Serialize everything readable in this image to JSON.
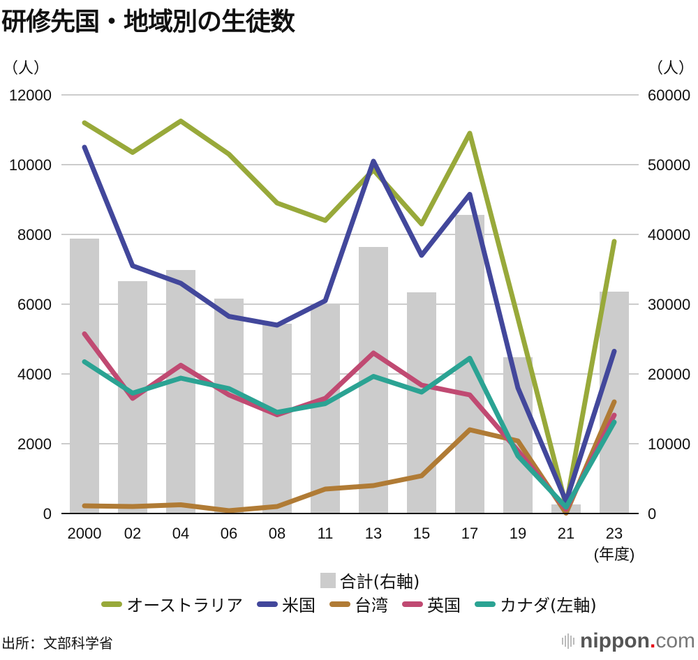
{
  "header": {
    "title": "研修先国・地域別の生徒数",
    "left_unit": "（人）",
    "right_unit": "（人）"
  },
  "chart_data": {
    "type": "bar+line",
    "title": "研修先国・地域別の生徒数",
    "xlabel": "(年度)",
    "ylabel_left": "（人）",
    "ylabel_right": "（人）",
    "categories": [
      "2000",
      "02",
      "04",
      "06",
      "08",
      "11",
      "13",
      "15",
      "17",
      "19",
      "21",
      "23"
    ],
    "y_left": {
      "min": 0,
      "max": 12000,
      "ticks": [
        "0",
        "2000",
        "4000",
        "6000",
        "8000",
        "10000",
        "12000"
      ]
    },
    "y_right": {
      "min": 0,
      "max": 60000,
      "ticks": [
        "0",
        "10000",
        "20000",
        "30000",
        "40000",
        "50000",
        "60000"
      ]
    },
    "grid": true,
    "bars": {
      "name": "合計(右軸)",
      "axis": "right",
      "color": "#cccccc",
      "values": [
        39400,
        33300,
        34900,
        30800,
        27200,
        30000,
        38200,
        31700,
        42800,
        22400,
        1300,
        31800
      ]
    },
    "series": [
      {
        "name": "オーストラリア",
        "axis": "left",
        "color": "#98a93a",
        "values": [
          11200,
          10350,
          11250,
          10300,
          8900,
          8400,
          9850,
          8300,
          10900,
          5600,
          220,
          7800
        ]
      },
      {
        "name": "米国",
        "axis": "left",
        "color": "#42479b",
        "values": [
          10500,
          7100,
          6600,
          5650,
          5400,
          6100,
          10100,
          7400,
          9150,
          3600,
          350,
          4650
        ]
      },
      {
        "name": "台湾",
        "axis": "left",
        "color": "#b07b35",
        "values": [
          220,
          200,
          250,
          80,
          200,
          700,
          800,
          1080,
          2400,
          2080,
          10,
          3200
        ]
      },
      {
        "name": "英国",
        "axis": "left",
        "color": "#c04a72",
        "values": [
          5150,
          3300,
          4250,
          3400,
          2830,
          3300,
          4600,
          3680,
          3400,
          1800,
          120,
          2820
        ]
      },
      {
        "name": "カナダ",
        "axis": "left",
        "color": "#2ba393",
        "values": [
          4350,
          3450,
          3880,
          3580,
          2900,
          3150,
          3930,
          3480,
          4450,
          1650,
          180,
          2620
        ]
      }
    ],
    "legend": {
      "placement": "bottom",
      "bar_label": "合計(右軸)",
      "line_labels": [
        "オーストラリア",
        "米国",
        "台湾",
        "英国",
        "カナダ(左軸)"
      ]
    }
  },
  "footer": {
    "source": "出所：文部科学省",
    "logo_brand": "nippon",
    "logo_dot": ".",
    "logo_suffix": "com"
  }
}
